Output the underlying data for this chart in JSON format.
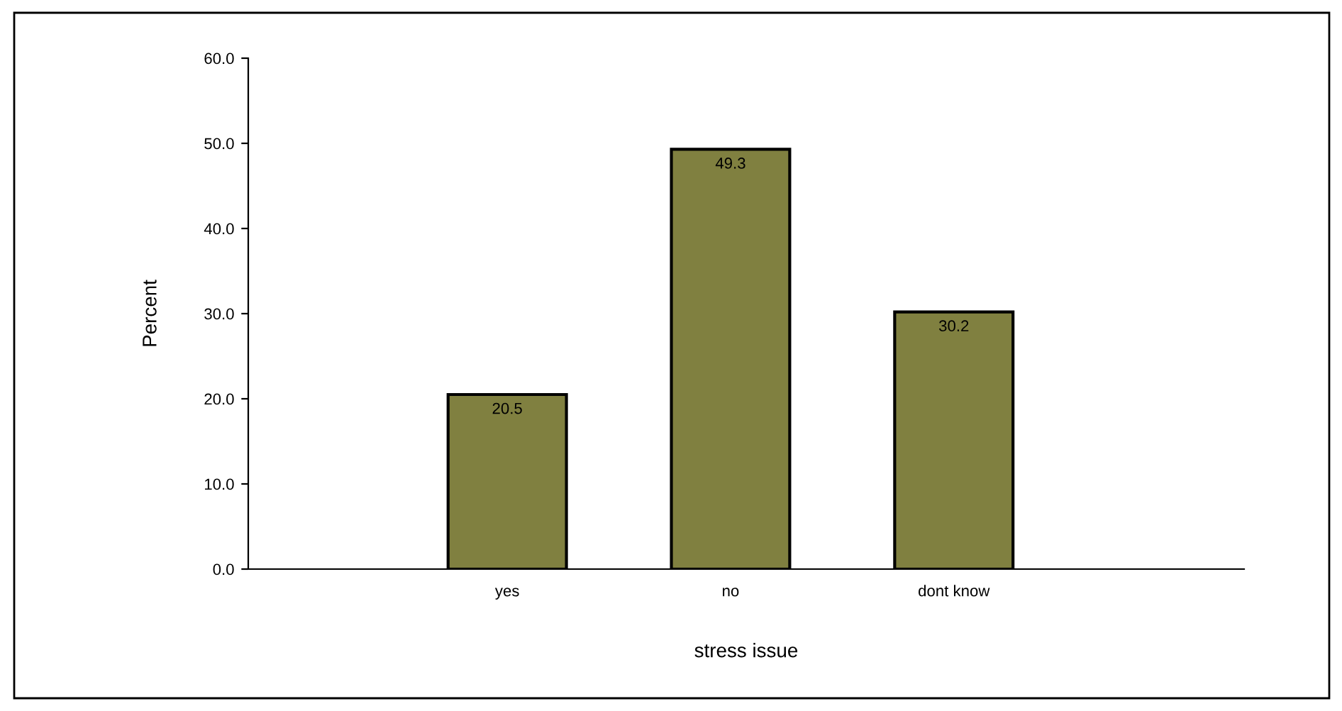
{
  "chart_data": {
    "type": "bar",
    "xlabel": "stress issue",
    "ylabel": "Percent",
    "categories": [
      "yes",
      "no",
      "dont know"
    ],
    "values": [
      20.5,
      49.3,
      30.2
    ],
    "color": "#808040",
    "ylim": [
      0,
      60
    ],
    "yticks": [
      {
        "value": 0,
        "label": "0.0"
      },
      {
        "value": 10,
        "label": "10.0"
      },
      {
        "value": 20,
        "label": "20.0"
      },
      {
        "value": 30,
        "label": "30.0"
      },
      {
        "value": 40,
        "label": "40.0"
      },
      {
        "value": 50,
        "label": "50.0"
      },
      {
        "value": 60,
        "label": "60.0"
      }
    ],
    "data_labels": true,
    "grid": false,
    "legend": false
  }
}
